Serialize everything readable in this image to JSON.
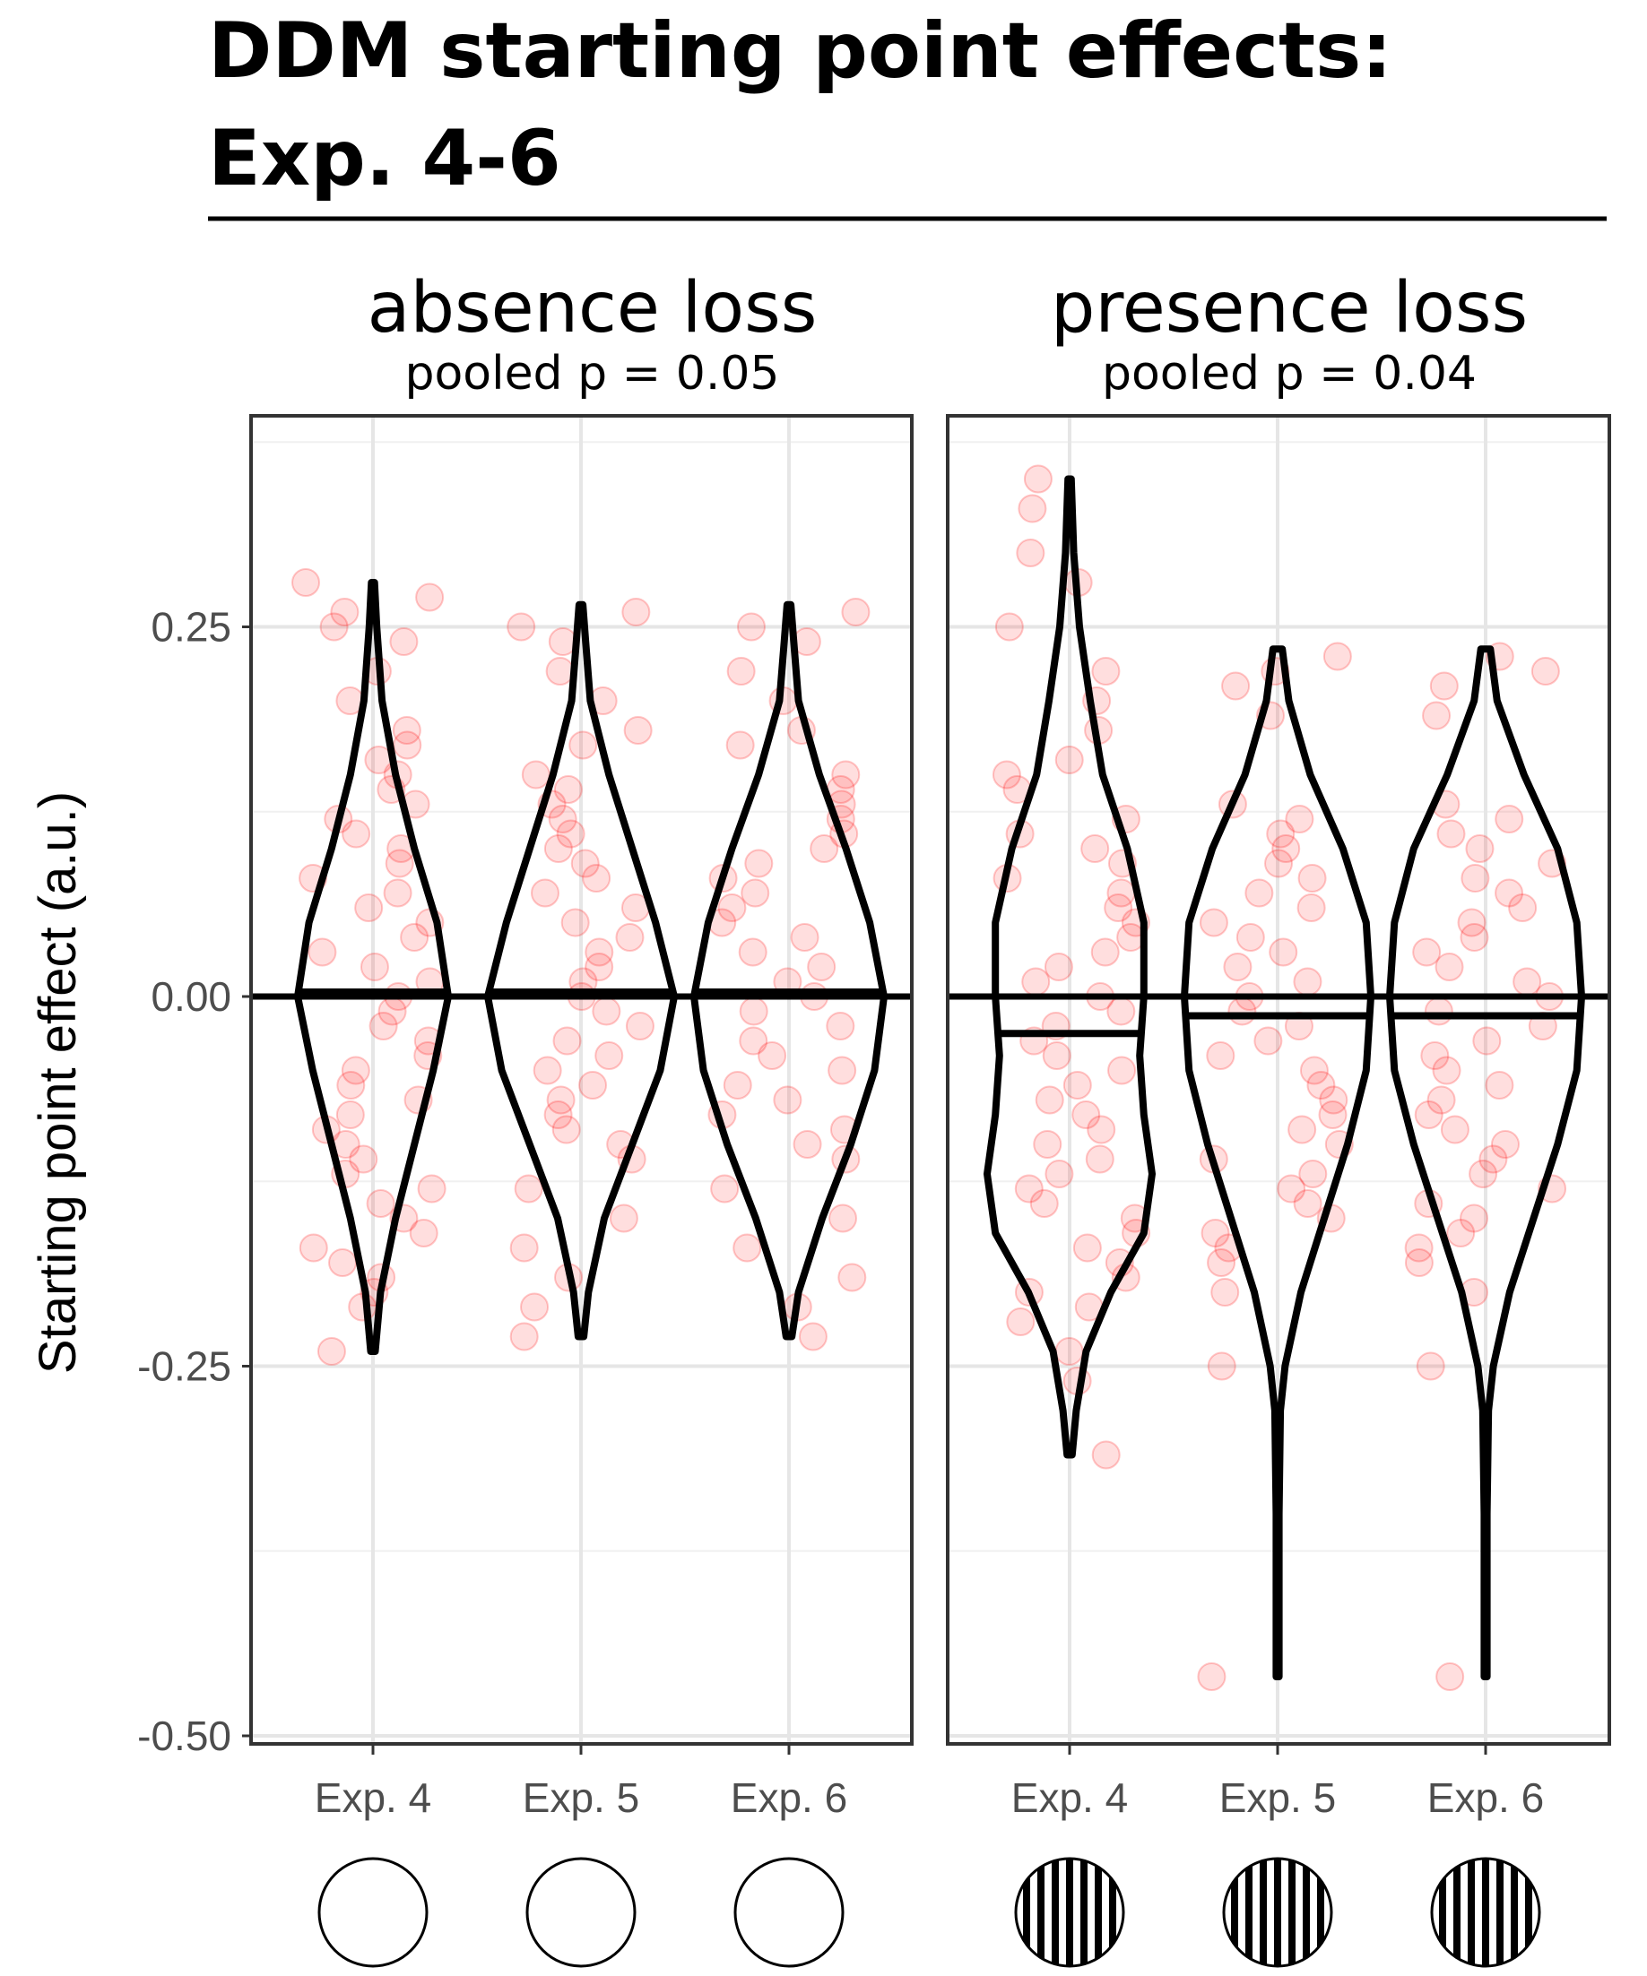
{
  "chart_data": {
    "type": "violin",
    "title": "DDM starting point effects:",
    "title_line2": "Exp. 4-6",
    "ylabel": "Starting point effect (a.u.)",
    "ylim": [
      -0.5,
      0.38
    ],
    "y_ticks": [
      0.25,
      0.0,
      -0.25,
      -0.5
    ],
    "y_tick_labels": [
      "0.25",
      "0.00",
      "-0.25",
      "-0.50"
    ],
    "grid": true,
    "reference_line_y": 0,
    "point_color": "#ff0000",
    "panels": [
      {
        "name": "absence loss",
        "subtitle": "pooled p = 0.05",
        "stimulus": "plain-circle",
        "categories": [
          "Exp. 4",
          "Exp. 5",
          "Exp. 6"
        ],
        "medians": [
          0.003,
          0.003,
          0.003
        ],
        "violins": [
          {
            "category": "Exp. 4",
            "profile": [
              [
                -0.24,
                0.03
              ],
              [
                -0.2,
                0.1
              ],
              [
                -0.15,
                0.3
              ],
              [
                -0.1,
                0.55
              ],
              [
                -0.05,
                0.8
              ],
              [
                0.0,
                1.0
              ],
              [
                0.05,
                0.85
              ],
              [
                0.1,
                0.55
              ],
              [
                0.15,
                0.3
              ],
              [
                0.2,
                0.12
              ],
              [
                0.25,
                0.05
              ],
              [
                0.28,
                0.02
              ]
            ]
          },
          {
            "category": "Exp. 5",
            "profile": [
              [
                -0.23,
                0.03
              ],
              [
                -0.2,
                0.08
              ],
              [
                -0.15,
                0.25
              ],
              [
                -0.1,
                0.55
              ],
              [
                -0.05,
                0.85
              ],
              [
                0.0,
                1.0
              ],
              [
                0.05,
                0.8
              ],
              [
                0.1,
                0.55
              ],
              [
                0.15,
                0.3
              ],
              [
                0.2,
                0.1
              ],
              [
                0.24,
                0.05
              ],
              [
                0.265,
                0.02
              ]
            ]
          },
          {
            "category": "Exp. 6",
            "profile": [
              [
                -0.23,
                0.03
              ],
              [
                -0.2,
                0.1
              ],
              [
                -0.15,
                0.35
              ],
              [
                -0.1,
                0.65
              ],
              [
                -0.05,
                0.9
              ],
              [
                0.0,
                1.0
              ],
              [
                0.05,
                0.85
              ],
              [
                0.1,
                0.6
              ],
              [
                0.15,
                0.32
              ],
              [
                0.2,
                0.1
              ],
              [
                0.24,
                0.05
              ],
              [
                0.265,
                0.02
              ]
            ]
          }
        ],
        "points": [
          {
            "category": "Exp. 4",
            "values": [
              0.28,
              0.27,
              0.26,
              0.25,
              0.24,
              0.22,
              0.2,
              0.18,
              0.17,
              0.16,
              0.15,
              0.14,
              0.13,
              0.12,
              0.11,
              0.1,
              0.09,
              0.08,
              0.07,
              0.06,
              0.05,
              0.04,
              0.03,
              0.02,
              0.01,
              0.0,
              -0.01,
              -0.02,
              -0.03,
              -0.04,
              -0.05,
              -0.06,
              -0.07,
              -0.08,
              -0.09,
              -0.1,
              -0.11,
              -0.12,
              -0.13,
              -0.14,
              -0.15,
              -0.16,
              -0.17,
              -0.18,
              -0.19,
              -0.2,
              -0.21,
              -0.24
            ]
          },
          {
            "category": "Exp. 5",
            "values": [
              0.26,
              0.25,
              0.24,
              0.22,
              0.2,
              0.18,
              0.17,
              0.15,
              0.14,
              0.13,
              0.12,
              0.11,
              0.1,
              0.09,
              0.08,
              0.07,
              0.06,
              0.05,
              0.04,
              0.03,
              0.02,
              0.01,
              0.0,
              -0.01,
              -0.02,
              -0.03,
              -0.04,
              -0.05,
              -0.06,
              -0.07,
              -0.08,
              -0.09,
              -0.1,
              -0.11,
              -0.13,
              -0.15,
              -0.17,
              -0.19,
              -0.21,
              -0.23
            ]
          },
          {
            "category": "Exp. 6",
            "values": [
              0.26,
              0.25,
              0.24,
              0.22,
              0.2,
              0.18,
              0.17,
              0.15,
              0.14,
              0.13,
              0.12,
              0.11,
              0.1,
              0.09,
              0.08,
              0.07,
              0.06,
              0.05,
              0.04,
              0.03,
              0.02,
              0.01,
              0.0,
              -0.01,
              -0.02,
              -0.03,
              -0.04,
              -0.05,
              -0.06,
              -0.07,
              -0.08,
              -0.09,
              -0.1,
              -0.11,
              -0.13,
              -0.15,
              -0.17,
              -0.19,
              -0.21,
              -0.23
            ]
          }
        ]
      },
      {
        "name": "presence loss",
        "subtitle": "pooled p = 0.04",
        "stimulus": "striped-circle",
        "categories": [
          "Exp. 4",
          "Exp. 5",
          "Exp. 6"
        ],
        "medians": [
          -0.025,
          -0.013,
          -0.013
        ],
        "violins": [
          {
            "category": "Exp. 4",
            "profile": [
              [
                -0.31,
                0.03
              ],
              [
                -0.28,
                0.08
              ],
              [
                -0.24,
                0.2
              ],
              [
                -0.2,
                0.5
              ],
              [
                -0.16,
                0.9
              ],
              [
                -0.12,
                1.0
              ],
              [
                -0.08,
                0.9
              ],
              [
                -0.04,
                0.85
              ],
              [
                0.0,
                0.9
              ],
              [
                0.05,
                0.9
              ],
              [
                0.1,
                0.7
              ],
              [
                0.15,
                0.4
              ],
              [
                0.2,
                0.25
              ],
              [
                0.25,
                0.12
              ],
              [
                0.3,
                0.05
              ],
              [
                0.35,
                0.02
              ]
            ]
          },
          {
            "category": "Exp. 5",
            "profile": [
              [
                -0.46,
                0.015
              ],
              [
                -0.35,
                0.015
              ],
              [
                -0.28,
                0.03
              ],
              [
                -0.25,
                0.08
              ],
              [
                -0.2,
                0.25
              ],
              [
                -0.15,
                0.5
              ],
              [
                -0.1,
                0.75
              ],
              [
                -0.05,
                0.95
              ],
              [
                0.0,
                1.0
              ],
              [
                0.05,
                0.95
              ],
              [
                0.1,
                0.7
              ],
              [
                0.15,
                0.35
              ],
              [
                0.2,
                0.12
              ],
              [
                0.235,
                0.05
              ]
            ]
          },
          {
            "category": "Exp. 6",
            "profile": [
              [
                -0.46,
                0.015
              ],
              [
                -0.35,
                0.015
              ],
              [
                -0.28,
                0.03
              ],
              [
                -0.25,
                0.08
              ],
              [
                -0.2,
                0.25
              ],
              [
                -0.15,
                0.5
              ],
              [
                -0.1,
                0.75
              ],
              [
                -0.05,
                0.95
              ],
              [
                0.0,
                1.0
              ],
              [
                0.05,
                0.95
              ],
              [
                0.1,
                0.75
              ],
              [
                0.15,
                0.4
              ],
              [
                0.2,
                0.12
              ],
              [
                0.235,
                0.05
              ]
            ]
          }
        ],
        "points": [
          {
            "category": "Exp. 4",
            "values": [
              0.35,
              0.33,
              0.3,
              0.28,
              0.25,
              0.22,
              0.2,
              0.18,
              0.16,
              0.15,
              0.14,
              0.12,
              0.11,
              0.1,
              0.09,
              0.08,
              0.07,
              0.06,
              0.05,
              0.04,
              0.03,
              0.02,
              0.01,
              0.0,
              -0.01,
              -0.02,
              -0.03,
              -0.04,
              -0.05,
              -0.06,
              -0.07,
              -0.08,
              -0.09,
              -0.1,
              -0.11,
              -0.12,
              -0.13,
              -0.14,
              -0.15,
              -0.16,
              -0.17,
              -0.18,
              -0.19,
              -0.2,
              -0.21,
              -0.22,
              -0.24,
              -0.26,
              -0.31
            ]
          },
          {
            "category": "Exp. 5",
            "values": [
              0.23,
              0.22,
              0.21,
              0.19,
              0.13,
              0.12,
              0.11,
              0.1,
              0.09,
              0.08,
              0.07,
              0.06,
              0.05,
              0.04,
              0.03,
              0.02,
              0.01,
              0.0,
              -0.01,
              -0.02,
              -0.03,
              -0.04,
              -0.05,
              -0.06,
              -0.07,
              -0.08,
              -0.09,
              -0.1,
              -0.11,
              -0.12,
              -0.13,
              -0.14,
              -0.15,
              -0.16,
              -0.17,
              -0.18,
              -0.2,
              -0.25,
              -0.46
            ]
          },
          {
            "category": "Exp. 6",
            "values": [
              0.23,
              0.22,
              0.21,
              0.19,
              0.13,
              0.12,
              0.11,
              0.1,
              0.09,
              0.08,
              0.07,
              0.06,
              0.05,
              0.04,
              0.03,
              0.02,
              0.01,
              0.0,
              -0.01,
              -0.02,
              -0.03,
              -0.04,
              -0.05,
              -0.06,
              -0.07,
              -0.08,
              -0.09,
              -0.1,
              -0.11,
              -0.12,
              -0.13,
              -0.14,
              -0.15,
              -0.16,
              -0.17,
              -0.18,
              -0.2,
              -0.25,
              -0.46
            ]
          }
        ]
      }
    ]
  }
}
